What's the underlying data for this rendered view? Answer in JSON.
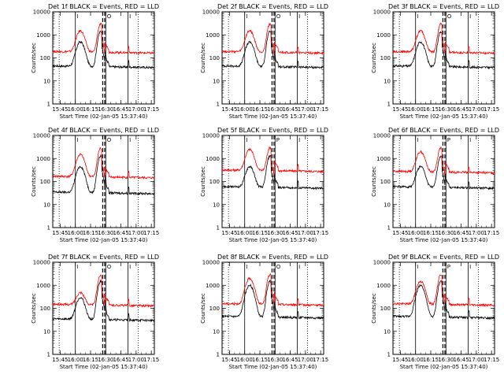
{
  "chart_data": [
    {
      "type": "line",
      "title": "Det 1f BLACK = Events, RED = LLD",
      "xlabel": "Start Time (02-Jan-05 15:37:40)",
      "ylabel": "Counts/sec",
      "yscale": "log",
      "ylim": [
        1,
        10000
      ],
      "xticks": [
        "15:45",
        "16:00",
        "16:15",
        "16:30",
        "16:45",
        "17:00",
        "17:15"
      ],
      "yticks": [
        "1",
        "10",
        "100",
        "1000",
        "10000"
      ],
      "markers": [
        {
          "time": "16:00",
          "label": "I",
          "style": "solid"
        },
        {
          "time": "16:30",
          "label": "O",
          "style": "solid"
        },
        {
          "time": "16:52",
          "label": "I",
          "style": "solid"
        },
        {
          "time": "17:02",
          "label": "",
          "style": "dotted"
        },
        {
          "time": "15:44",
          "label": "",
          "style": "dotted"
        }
      ],
      "dashed_lines": [
        "16:27",
        "16:29"
      ],
      "series": [
        {
          "name": "BLACK = Events",
          "color": "#000000",
          "baseline": 45,
          "flare1_peak": 500,
          "flare2_peak": 1400
        },
        {
          "name": "RED = LLD",
          "color": "#ff0000",
          "baseline": 190,
          "flare1_peak": 1500,
          "flare2_peak": 3000
        }
      ]
    },
    {
      "type": "line",
      "title": "Det 2f BLACK = Events, RED = LLD",
      "xlabel": "Start Time (02-Jan-05 15:37:40)",
      "ylabel": "Counts/sec",
      "yscale": "log",
      "ylim": [
        1,
        10000
      ],
      "xticks": [
        "15:45",
        "16:00",
        "16:15",
        "16:30",
        "16:45",
        "17:00",
        "17:15"
      ],
      "yticks": [
        "1",
        "10",
        "100",
        "1000",
        "10000"
      ],
      "markers": [
        {
          "time": "16:00",
          "label": "I",
          "style": "solid"
        },
        {
          "time": "16:30",
          "label": "O",
          "style": "solid"
        },
        {
          "time": "16:52",
          "label": "I",
          "style": "solid"
        },
        {
          "time": "17:02",
          "label": "",
          "style": "dotted"
        },
        {
          "time": "15:44",
          "label": "",
          "style": "dotted"
        }
      ],
      "dashed_lines": [
        "16:27",
        "16:29"
      ],
      "series": [
        {
          "name": "BLACK = Events",
          "color": "#000000",
          "baseline": 45,
          "flare1_peak": 500,
          "flare2_peak": 1400
        },
        {
          "name": "RED = LLD",
          "color": "#ff0000",
          "baseline": 190,
          "flare1_peak": 1500,
          "flare2_peak": 3000
        }
      ]
    },
    {
      "type": "line",
      "title": "Det 3f BLACK = Events, RED = LLD",
      "xlabel": "Start Time (02-Jan-05 15:37:40)",
      "ylabel": "Counts/sec",
      "yscale": "log",
      "ylim": [
        1,
        10000
      ],
      "xticks": [
        "15:45",
        "16:00",
        "16:15",
        "16:30",
        "16:45",
        "17:00",
        "17:15"
      ],
      "yticks": [
        "1",
        "10",
        "100",
        "1000",
        "10000"
      ],
      "markers": [
        {
          "time": "16:00",
          "label": "I",
          "style": "solid"
        },
        {
          "time": "16:30",
          "label": "O",
          "style": "solid"
        },
        {
          "time": "16:52",
          "label": "I",
          "style": "solid"
        },
        {
          "time": "17:02",
          "label": "",
          "style": "dotted"
        },
        {
          "time": "15:44",
          "label": "",
          "style": "dotted"
        }
      ],
      "dashed_lines": [
        "16:27",
        "16:29"
      ],
      "series": [
        {
          "name": "BLACK = Events",
          "color": "#000000",
          "baseline": 45,
          "flare1_peak": 500,
          "flare2_peak": 1400
        },
        {
          "name": "RED = LLD",
          "color": "#ff0000",
          "baseline": 190,
          "flare1_peak": 1500,
          "flare2_peak": 3000
        }
      ]
    },
    {
      "type": "line",
      "title": "Det 4f BLACK = Events, RED = LLD",
      "xlabel": "Start Time (02-Jan-05 15:37:40)",
      "ylabel": "Counts/sec",
      "yscale": "log",
      "ylim": [
        1,
        10000
      ],
      "xticks": [
        "15:45",
        "16:00",
        "16:15",
        "16:30",
        "16:45",
        "17:00",
        "17:15"
      ],
      "yticks": [
        "1",
        "10",
        "100",
        "1000",
        "10000"
      ],
      "markers": [
        {
          "time": "16:00",
          "label": "I",
          "style": "solid"
        },
        {
          "time": "16:30",
          "label": "O",
          "style": "solid"
        },
        {
          "time": "16:52",
          "label": "I",
          "style": "solid"
        },
        {
          "time": "17:02",
          "label": "",
          "style": "dotted"
        },
        {
          "time": "15:44",
          "label": "",
          "style": "dotted"
        }
      ],
      "dashed_lines": [
        "16:27",
        "16:29"
      ],
      "series": [
        {
          "name": "BLACK = Events",
          "color": "#000000",
          "baseline": 35,
          "flare1_peak": 450,
          "flare2_peak": 1300
        },
        {
          "name": "RED = LLD",
          "color": "#ff0000",
          "baseline": 170,
          "flare1_peak": 1500,
          "flare2_peak": 2800
        }
      ]
    },
    {
      "type": "line",
      "title": "Det 5f BLACK = Events, RED = LLD",
      "xlabel": "Start Time (02-Jan-05 15:37:40)",
      "ylabel": "Counts/sec",
      "yscale": "log",
      "ylim": [
        1,
        10000
      ],
      "xticks": [
        "15:45",
        "16:00",
        "16:15",
        "16:30",
        "16:45",
        "17:00",
        "17:15"
      ],
      "yticks": [
        "1",
        "10",
        "100",
        "1000",
        "10000"
      ],
      "markers": [
        {
          "time": "16:00",
          "label": "I",
          "style": "solid"
        },
        {
          "time": "16:30",
          "label": "P",
          "style": "solid"
        },
        {
          "time": "16:52",
          "label": "I",
          "style": "solid"
        },
        {
          "time": "17:02",
          "label": "",
          "style": "dotted"
        },
        {
          "time": "15:44",
          "label": "",
          "style": "dotted"
        }
      ],
      "dashed_lines": [
        "16:27",
        "16:29"
      ],
      "series": [
        {
          "name": "BLACK = Events",
          "color": "#000000",
          "baseline": 60,
          "flare1_peak": 450,
          "flare2_peak": 1300
        },
        {
          "name": "RED = LLD",
          "color": "#ff0000",
          "baseline": 320,
          "flare1_peak": 2500,
          "flare2_peak": 3000
        }
      ]
    },
    {
      "type": "line",
      "title": "Det 6f BLACK = Events, RED = LLD",
      "xlabel": "Start Time (02-Jan-05 15:37:40)",
      "ylabel": "Counts/sec",
      "yscale": "log",
      "ylim": [
        1,
        10000
      ],
      "xticks": [
        "15:45",
        "16:00",
        "16:15",
        "16:30",
        "16:45",
        "17:00",
        "17:15"
      ],
      "yticks": [
        "1",
        "10",
        "100",
        "1000",
        "10000"
      ],
      "markers": [
        {
          "time": "16:00",
          "label": "I",
          "style": "solid"
        },
        {
          "time": "16:30",
          "label": "P",
          "style": "solid"
        },
        {
          "time": "16:52",
          "label": "I",
          "style": "solid"
        },
        {
          "time": "17:02",
          "label": "",
          "style": "dotted"
        },
        {
          "time": "15:44",
          "label": "",
          "style": "dotted"
        }
      ],
      "dashed_lines": [
        "16:27",
        "16:29"
      ],
      "series": [
        {
          "name": "BLACK = Events",
          "color": "#000000",
          "baseline": 60,
          "flare1_peak": 450,
          "flare2_peak": 1300
        },
        {
          "name": "RED = LLD",
          "color": "#ff0000",
          "baseline": 280,
          "flare1_peak": 2000,
          "flare2_peak": 3000
        }
      ]
    },
    {
      "type": "line",
      "title": "Det 7f BLACK = Events, RED = LLD",
      "xlabel": "Start Time (02-Jan-05 15:37:40)",
      "ylabel": "Counts/sec",
      "yscale": "log",
      "ylim": [
        1,
        10000
      ],
      "xticks": [
        "15:45",
        "16:00",
        "16:15",
        "16:30",
        "16:45",
        "17:00",
        "17:15"
      ],
      "yticks": [
        "1",
        "10",
        "100",
        "1000",
        "10000"
      ],
      "markers": [
        {
          "time": "16:00",
          "label": "I",
          "style": "solid"
        },
        {
          "time": "16:30",
          "label": "O",
          "style": "solid"
        },
        {
          "time": "16:52",
          "label": "I",
          "style": "solid"
        },
        {
          "time": "17:02",
          "label": "",
          "style": "dotted"
        },
        {
          "time": "15:44",
          "label": "",
          "style": "dotted"
        }
      ],
      "dashed_lines": [
        "16:27",
        "16:29"
      ],
      "series": [
        {
          "name": "BLACK = Events",
          "color": "#000000",
          "baseline": 35,
          "flare1_peak": 300,
          "flare2_peak": 1500
        },
        {
          "name": "RED = LLD",
          "color": "#ff0000",
          "baseline": 150,
          "flare1_peak": 500,
          "flare2_peak": 2800
        }
      ]
    },
    {
      "type": "line",
      "title": "Det 8f BLACK = Events, RED = LLD",
      "xlabel": "Start Time (02-Jan-05 15:37:40)",
      "ylabel": "Counts/sec",
      "yscale": "log",
      "ylim": [
        1,
        10000
      ],
      "xticks": [
        "15:45",
        "16:00",
        "16:15",
        "16:30",
        "16:45",
        "17:00",
        "17:15"
      ],
      "yticks": [
        "1",
        "10",
        "100",
        "1000",
        "10000"
      ],
      "markers": [
        {
          "time": "16:00",
          "label": "I",
          "style": "solid"
        },
        {
          "time": "16:30",
          "label": "O",
          "style": "solid"
        },
        {
          "time": "16:52",
          "label": "I",
          "style": "solid"
        },
        {
          "time": "17:02",
          "label": "",
          "style": "dotted"
        },
        {
          "time": "15:44",
          "label": "",
          "style": "dotted"
        }
      ],
      "dashed_lines": [
        "16:27",
        "16:29"
      ],
      "series": [
        {
          "name": "BLACK = Events",
          "color": "#000000",
          "baseline": 45,
          "flare1_peak": 1000,
          "flare2_peak": 1500
        },
        {
          "name": "RED = LLD",
          "color": "#ff0000",
          "baseline": 160,
          "flare1_peak": 2000,
          "flare2_peak": 3000
        }
      ]
    },
    {
      "type": "line",
      "title": "Det 9f BLACK = Events, RED = LLD",
      "xlabel": "Start Time (02-Jan-05 15:37:40)",
      "ylabel": "Counts/sec",
      "yscale": "log",
      "ylim": [
        1,
        10000
      ],
      "xticks": [
        "15:45",
        "16:00",
        "16:15",
        "16:30",
        "16:45",
        "17:00",
        "17:15"
      ],
      "yticks": [
        "1",
        "10",
        "100",
        "1000",
        "10000"
      ],
      "markers": [
        {
          "time": "16:00",
          "label": "I",
          "style": "solid"
        },
        {
          "time": "16:30",
          "label": "P",
          "style": "solid"
        },
        {
          "time": "16:52",
          "label": "I",
          "style": "solid"
        },
        {
          "time": "17:02",
          "label": "",
          "style": "dotted"
        },
        {
          "time": "15:44",
          "label": "",
          "style": "dotted"
        }
      ],
      "dashed_lines": [
        "16:27",
        "16:29"
      ],
      "series": [
        {
          "name": "BLACK = Events",
          "color": "#000000",
          "baseline": 45,
          "flare1_peak": 1000,
          "flare2_peak": 1500
        },
        {
          "name": "RED = LLD",
          "color": "#ff0000",
          "baseline": 160,
          "flare1_peak": 1500,
          "flare2_peak": 3000
        }
      ]
    }
  ]
}
